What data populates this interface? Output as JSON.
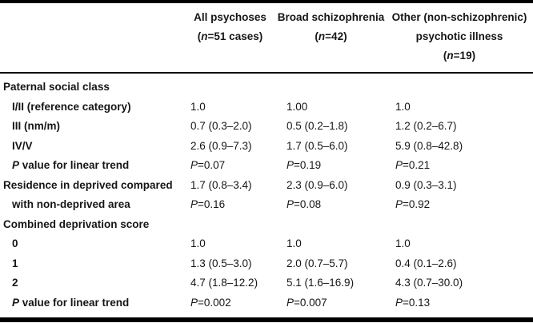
{
  "table": {
    "columns": [
      {
        "lines": [
          "All psychoses",
          "(n=51 cases)"
        ]
      },
      {
        "lines": [
          "Broad schizophrenia",
          "(n=42)"
        ]
      },
      {
        "lines": [
          "Other (non-schizophrenic)",
          "psychotic illness",
          "(n=19)"
        ]
      }
    ],
    "rows": [
      {
        "label": "Paternal social class",
        "indent": false,
        "cells": [
          "",
          "",
          ""
        ]
      },
      {
        "label": "I/II (reference category)",
        "indent": true,
        "cells": [
          "1.0",
          "1.00",
          "1.0"
        ]
      },
      {
        "label": "III (nm/m)",
        "indent": true,
        "cells": [
          "0.7 (0.3–2.0)",
          "0.5 (0.2–1.8)",
          "1.2 (0.2–6.7)"
        ]
      },
      {
        "label": "IV/V",
        "indent": true,
        "cells": [
          "2.6 (0.9–7.3)",
          "1.7 (0.5–6.0)",
          "5.9 (0.8–42.8)"
        ]
      },
      {
        "label": "P value for linear trend",
        "indent": true,
        "cells": [
          "P=0.07",
          "P=0.19",
          "P=0.21"
        ]
      },
      {
        "label": "Residence in deprived compared",
        "indent": false,
        "cells": [
          "1.7 (0.8–3.4)",
          "2.3 (0.9–6.0)",
          "0.9 (0.3–3.1)"
        ]
      },
      {
        "label": "with non-deprived area",
        "indent": true,
        "cells": [
          "P=0.16",
          "P=0.08",
          "P=0.92"
        ]
      },
      {
        "label": "Combined deprivation score",
        "indent": false,
        "cells": [
          "",
          "",
          ""
        ]
      },
      {
        "label": "0",
        "indent": true,
        "cells": [
          "1.0",
          "1.0",
          "1.0"
        ]
      },
      {
        "label": "1",
        "indent": true,
        "cells": [
          "1.3 (0.5–3.0)",
          "2.0 (0.7–5.7)",
          "0.4 (0.1–2.6)"
        ]
      },
      {
        "label": "2",
        "indent": true,
        "cells": [
          "4.7 (1.8–12.2)",
          "5.1 (1.6–16.9)",
          "4.3 (0.7–30.0)"
        ]
      },
      {
        "label": "P value for linear trend",
        "indent": true,
        "cells": [
          "P=0.002",
          "P=0.007",
          "P=0.13"
        ]
      }
    ]
  }
}
